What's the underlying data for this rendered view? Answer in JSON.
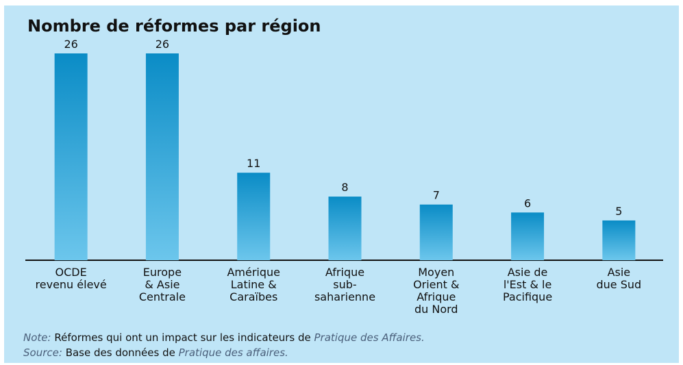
{
  "chart_data": {
    "type": "bar",
    "title": "Nombre de réformes par région",
    "categories": [
      "OCDE\nrevenu élevé",
      "Europe\n& Asie\nCentrale",
      "Amérique\nLatine &\nCaraïbes",
      "Afrique\nsub-\nsaharienne",
      "Moyen\nOrient &\nAfrique\ndu Nord",
      "Asie de\nl'Est & le\nPacifique",
      "Asie\ndue Sud"
    ],
    "values": [
      26,
      26,
      11,
      8,
      7,
      6,
      5
    ],
    "color": "#1aa0d8",
    "ylim": [
      0,
      26
    ],
    "note": {
      "label": "Note:",
      "text": "Réformes qui ont un impact sur les indicateurs de",
      "emphasis": "Pratique des Affaires."
    },
    "source": {
      "label": "Source:",
      "text": "Base des données de",
      "emphasis": "Pratique des affaires."
    }
  }
}
